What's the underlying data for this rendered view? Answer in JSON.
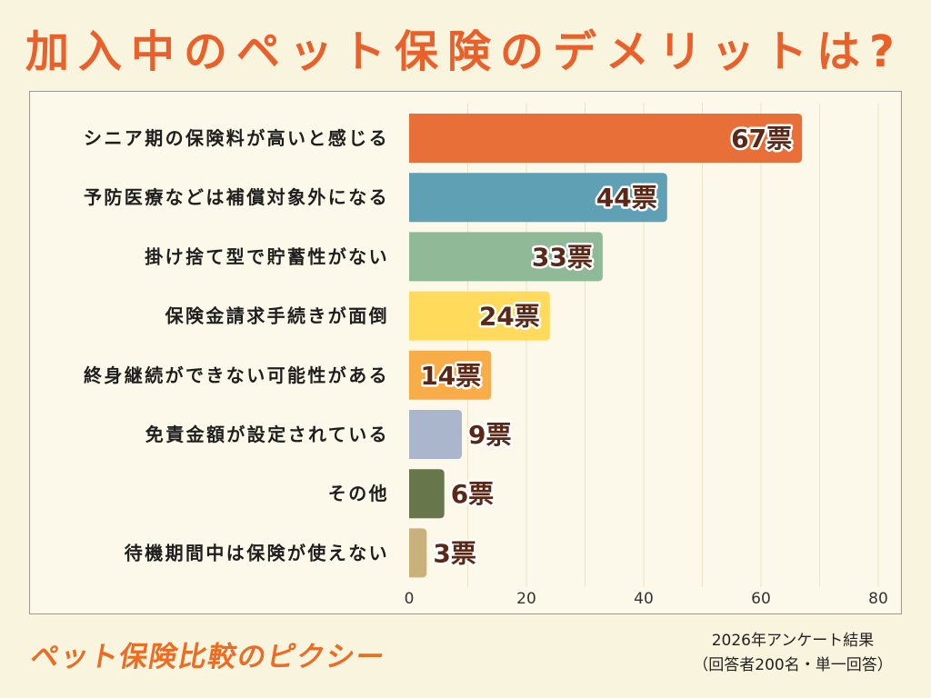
{
  "page": {
    "background": "#f8f4dd",
    "panel": "#fcf9ea",
    "accent": "#e9602a",
    "value_label_color": "#5a2816"
  },
  "chart_data": {
    "type": "bar",
    "title": "加入中のペット保険のデメリットは?",
    "categories": [
      "シニア期の保険料が高いと感じる",
      "予防医療などは補償対象外になる",
      "掛け捨て型で貯蓄性がない",
      "保険金請求手続きが面倒",
      "終身継続ができない可能性がある",
      "免責金額が設定されている",
      "その他",
      "待機期間中は保険が使えない"
    ],
    "values": [
      67,
      44,
      33,
      24,
      14,
      9,
      6,
      3
    ],
    "value_labels": [
      "67票",
      "44票",
      "33票",
      "24票",
      "14票",
      "9票",
      "6票",
      "3票"
    ],
    "colors": [
      "#e86f37",
      "#5fa0b4",
      "#8fb997",
      "#ffda5b",
      "#f8ad48",
      "#aab6cc",
      "#67774b",
      "#c9b17b"
    ],
    "xlabel": "",
    "ylabel": "",
    "xlim": [
      0,
      80
    ],
    "xticks": [
      0,
      20,
      40,
      60,
      80
    ],
    "grid": true
  },
  "footer": {
    "brand": "ペット保険比較のピクシー",
    "survey": "2026年アンケート結果",
    "respondents": "（回答者200名・単一回答）"
  }
}
